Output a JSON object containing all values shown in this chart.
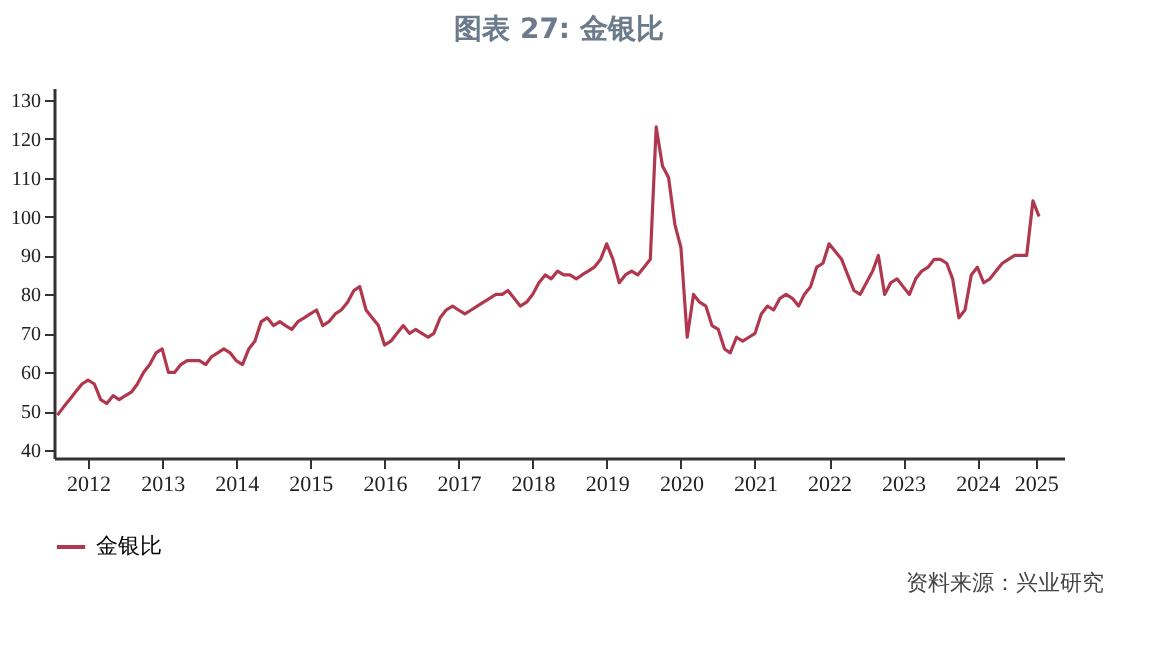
{
  "chart_data": {
    "type": "line",
    "title": "图表 27: 金银比",
    "x": [
      "2012-02",
      "2012-03",
      "2012-04",
      "2012-05",
      "2012-06",
      "2012-07",
      "2012-08",
      "2012-09",
      "2012-10",
      "2012-11",
      "2012-12",
      "2013-01",
      "2013-02",
      "2013-03",
      "2013-04",
      "2013-05",
      "2013-06",
      "2013-07",
      "2013-08",
      "2013-09",
      "2013-10",
      "2013-11",
      "2013-12",
      "2014-01",
      "2014-02",
      "2014-03",
      "2014-04",
      "2014-05",
      "2014-06",
      "2014-07",
      "2014-08",
      "2014-09",
      "2014-10",
      "2014-11",
      "2014-12",
      "2015-01",
      "2015-02",
      "2015-03",
      "2015-04",
      "2015-05",
      "2015-06",
      "2015-07",
      "2015-08",
      "2015-09",
      "2015-10",
      "2015-11",
      "2015-12",
      "2016-01",
      "2016-02",
      "2016-03",
      "2016-04",
      "2016-05",
      "2016-06",
      "2016-07",
      "2016-08",
      "2016-09",
      "2016-10",
      "2016-11",
      "2016-12",
      "2017-01",
      "2017-02",
      "2017-03",
      "2017-04",
      "2017-05",
      "2017-06",
      "2017-07",
      "2017-08",
      "2017-09",
      "2017-10",
      "2017-11",
      "2017-12",
      "2018-01",
      "2018-02",
      "2018-03",
      "2018-04",
      "2018-05",
      "2018-06",
      "2018-07",
      "2018-08",
      "2018-09",
      "2018-10",
      "2018-11",
      "2018-12",
      "2019-01",
      "2019-02",
      "2019-03",
      "2019-04",
      "2019-05",
      "2019-06",
      "2019-07",
      "2019-08",
      "2019-09",
      "2019-10",
      "2019-11",
      "2019-12",
      "2020-01",
      "2020-02",
      "2020-03",
      "2020-04",
      "2020-05",
      "2020-06",
      "2020-07",
      "2020-08",
      "2020-09",
      "2020-10",
      "2020-11",
      "2020-12",
      "2021-01",
      "2021-02",
      "2021-03",
      "2021-04",
      "2021-05",
      "2021-06",
      "2021-07",
      "2021-08",
      "2021-09",
      "2021-10",
      "2021-11",
      "2021-12",
      "2022-01",
      "2022-02",
      "2022-03",
      "2022-04",
      "2022-05",
      "2022-06",
      "2022-07",
      "2022-08",
      "2022-09",
      "2022-10",
      "2022-11",
      "2022-12",
      "2023-01",
      "2023-02",
      "2023-03",
      "2023-04",
      "2023-05",
      "2023-06",
      "2023-07",
      "2023-08",
      "2023-09",
      "2023-10",
      "2023-11",
      "2023-12",
      "2024-01",
      "2024-02",
      "2024-03",
      "2024-04",
      "2024-05",
      "2024-06",
      "2024-07",
      "2024-08",
      "2024-09",
      "2024-10",
      "2024-11",
      "2024-12",
      "2025-01",
      "2025-02",
      "2025-03",
      "2025-04",
      "2025-05"
    ],
    "series": [
      {
        "name": "金银比",
        "color": "#b0384e",
        "values": [
          49,
          51,
          53,
          55,
          57,
          58,
          57,
          53,
          52,
          54,
          53,
          54,
          55,
          57,
          60,
          62,
          65,
          66,
          60,
          60,
          62,
          63,
          63,
          63,
          62,
          64,
          65,
          66,
          65,
          63,
          62,
          66,
          68,
          73,
          74,
          72,
          73,
          72,
          71,
          73,
          74,
          75,
          76,
          72,
          73,
          75,
          76,
          78,
          81,
          82,
          76,
          74,
          72,
          67,
          68,
          70,
          72,
          70,
          71,
          70,
          69,
          70,
          74,
          76,
          77,
          76,
          75,
          76,
          77,
          78,
          79,
          80,
          80,
          81,
          79,
          77,
          78,
          80,
          83,
          85,
          84,
          86,
          85,
          85,
          84,
          85,
          86,
          87,
          89,
          93,
          89,
          83,
          85,
          86,
          85,
          87,
          89,
          123,
          113,
          110,
          98,
          92,
          69,
          80,
          78,
          77,
          72,
          71,
          66,
          65,
          69,
          68,
          69,
          70,
          75,
          77,
          76,
          79,
          80,
          79,
          77,
          80,
          82,
          87,
          88,
          93,
          91,
          89,
          85,
          81,
          80,
          83,
          86,
          90,
          80,
          83,
          84,
          82,
          80,
          84,
          86,
          87,
          89,
          89,
          88,
          84,
          74,
          76,
          85,
          87,
          83,
          84,
          86,
          88,
          89,
          90,
          90,
          90,
          104,
          100
        ]
      }
    ],
    "xlim": [
      "2012-01-15",
      "2025-09-01"
    ],
    "xticks": [
      {
        "value": "2012-07-01",
        "label": "2012"
      },
      {
        "value": "2013-07-01",
        "label": "2013"
      },
      {
        "value": "2014-07-01",
        "label": "2014"
      },
      {
        "value": "2015-07-01",
        "label": "2015"
      },
      {
        "value": "2016-07-01",
        "label": "2016"
      },
      {
        "value": "2017-07-01",
        "label": "2017"
      },
      {
        "value": "2018-07-01",
        "label": "2018"
      },
      {
        "value": "2019-07-01",
        "label": "2019"
      },
      {
        "value": "2020-07-01",
        "label": "2020"
      },
      {
        "value": "2021-07-01",
        "label": "2021"
      },
      {
        "value": "2022-07-01",
        "label": "2022"
      },
      {
        "value": "2023-07-01",
        "label": "2023"
      },
      {
        "value": "2024-07-01",
        "label": "2024"
      },
      {
        "value": "2025-04-15",
        "label": "2025"
      }
    ],
    "ylim": [
      38,
      133
    ],
    "yticks": [
      40,
      50,
      60,
      70,
      80,
      90,
      100,
      110,
      120,
      130
    ],
    "grid": false,
    "legend": "bottom",
    "annotations": [
      "资料来源：兴业研究"
    ]
  }
}
